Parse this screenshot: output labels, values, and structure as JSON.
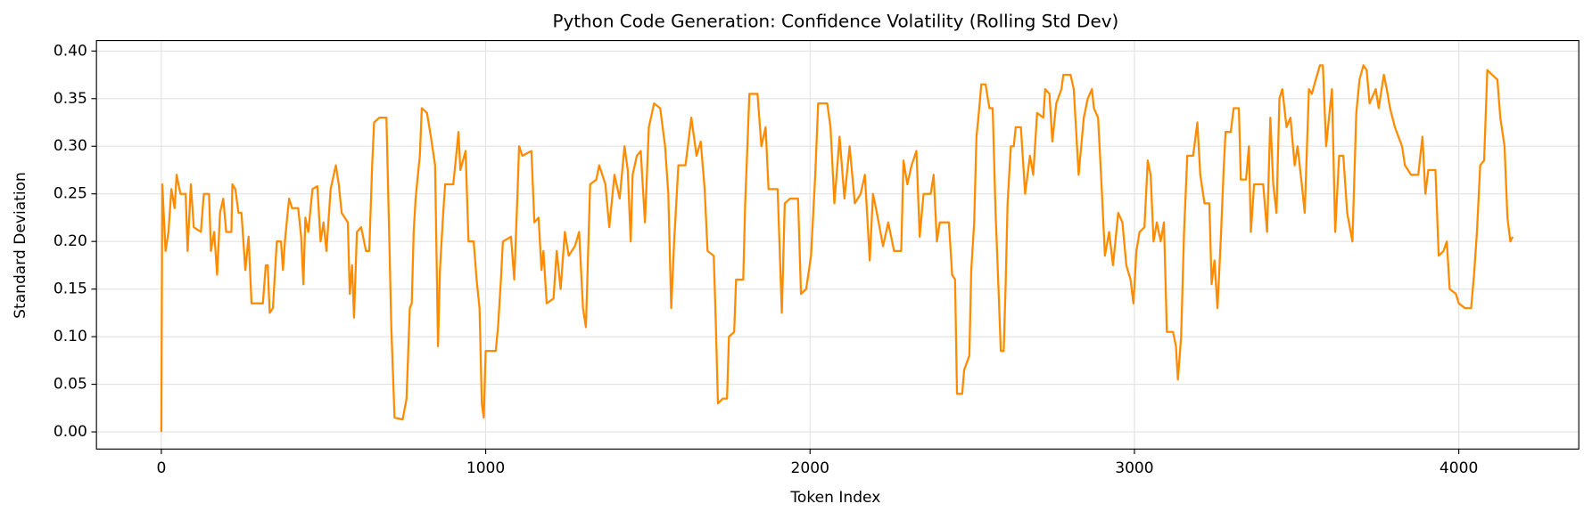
{
  "chart_data": {
    "type": "line",
    "title": "Python Code Generation: Confidence Volatility (Rolling Std Dev)",
    "x_label": "Token Index",
    "y_label": "Standard Deviation",
    "xlim": [
      -200,
      4370
    ],
    "ylim": [
      -0.018,
      0.411
    ],
    "xticks": [
      0,
      1000,
      2000,
      3000,
      4000
    ],
    "yticks": [
      {
        "value": 0,
        "label": "0.00"
      },
      {
        "value": 0.05,
        "label": "0.05"
      },
      {
        "value": 0.1,
        "label": "0.10"
      },
      {
        "value": 0.15,
        "label": "0.15"
      },
      {
        "value": 0.2,
        "label": "0.20"
      },
      {
        "value": 0.25,
        "label": "0.25"
      },
      {
        "value": 0.3,
        "label": "0.30"
      },
      {
        "value": 0.35,
        "label": "0.35"
      },
      {
        "value": 0.4,
        "label": "0.40"
      }
    ],
    "grid": true,
    "x": [
      0,
      3,
      13,
      22,
      31,
      41,
      47,
      59,
      75,
      81,
      91,
      100,
      122,
      131,
      147,
      153,
      163,
      172,
      181,
      191,
      200,
      216,
      219,
      228,
      238,
      247,
      259,
      269,
      278,
      313,
      322,
      328,
      334,
      344,
      350,
      356,
      369,
      375,
      381,
      388,
      394,
      403,
      422,
      431,
      438,
      444,
      453,
      466,
      481,
      491,
      500,
      509,
      522,
      538,
      547,
      556,
      575,
      581,
      588,
      594,
      603,
      616,
      631,
      641,
      650,
      656,
      672,
      694,
      703,
      709,
      719,
      744,
      756,
      766,
      772,
      778,
      784,
      791,
      797,
      803,
      819,
      831,
      844,
      853,
      859,
      869,
      875,
      900,
      909,
      916,
      922,
      938,
      947,
      963,
      972,
      981,
      988,
      994,
      1000,
      1031,
      1038,
      1047,
      1053,
      1078,
      1088,
      1097,
      1103,
      1113,
      1141,
      1150,
      1163,
      1172,
      1178,
      1188,
      1209,
      1219,
      1231,
      1244,
      1256,
      1275,
      1288,
      1300,
      1309,
      1322,
      1341,
      1350,
      1369,
      1381,
      1397,
      1413,
      1428,
      1438,
      1447,
      1453,
      1466,
      1478,
      1491,
      1503,
      1519,
      1538,
      1553,
      1563,
      1572,
      1581,
      1594,
      1616,
      1634,
      1650,
      1663,
      1675,
      1684,
      1703,
      1709,
      1716,
      1731,
      1744,
      1750,
      1766,
      1772,
      1794,
      1800,
      1813,
      1838,
      1850,
      1863,
      1872,
      1900,
      1913,
      1922,
      1938,
      1963,
      1972,
      1988,
      2003,
      2016,
      2025,
      2053,
      2063,
      2075,
      2091,
      2106,
      2122,
      2138,
      2156,
      2169,
      2184,
      2194,
      2206,
      2225,
      2241,
      2259,
      2281,
      2288,
      2300,
      2313,
      2328,
      2338,
      2350,
      2372,
      2381,
      2391,
      2400,
      2428,
      2438,
      2447,
      2453,
      2469,
      2475,
      2491,
      2497,
      2506,
      2513,
      2519,
      2528,
      2541,
      2553,
      2563,
      2572,
      2581,
      2588,
      2597,
      2603,
      2609,
      2619,
      2628,
      2634,
      2650,
      2663,
      2678,
      2688,
      2700,
      2719,
      2725,
      2738,
      2747,
      2759,
      2775,
      2781,
      2803,
      2813,
      2828,
      2844,
      2856,
      2869,
      2875,
      2888,
      2900,
      2909,
      2922,
      2934,
      2950,
      2963,
      2975,
      2988,
      2997,
      3006,
      3016,
      3031,
      3041,
      3050,
      3059,
      3069,
      3081,
      3091,
      3100,
      3119,
      3128,
      3134,
      3144,
      3153,
      3163,
      3181,
      3194,
      3203,
      3216,
      3231,
      3238,
      3247,
      3256,
      3266,
      3275,
      3281,
      3297,
      3306,
      3322,
      3328,
      3344,
      3353,
      3359,
      3369,
      3397,
      3409,
      3419,
      3428,
      3438,
      3447,
      3456,
      3469,
      3481,
      3494,
      3503,
      3516,
      3525,
      3538,
      3547,
      3559,
      3572,
      3581,
      3591,
      3600,
      3609,
      3619,
      3631,
      3644,
      3656,
      3672,
      3684,
      3694,
      3706,
      3716,
      3725,
      3744,
      3753,
      3769,
      3778,
      3788,
      3803,
      3825,
      3834,
      3853,
      3875,
      3888,
      3897,
      3906,
      3928,
      3938,
      3953,
      3963,
      3972,
      3991,
      4000,
      4019,
      4038,
      4047,
      4056,
      4066,
      4078,
      4088,
      4103,
      4119,
      4128,
      4141,
      4150,
      4159,
      4166
    ],
    "series": [
      {
        "color": "#ff8c00",
        "values": [
          0,
          0.26,
          0.19,
          0.21,
          0.255,
          0.235,
          0.27,
          0.25,
          0.25,
          0.19,
          0.26,
          0.215,
          0.21,
          0.25,
          0.25,
          0.19,
          0.21,
          0.165,
          0.23,
          0.245,
          0.21,
          0.21,
          0.26,
          0.255,
          0.23,
          0.23,
          0.17,
          0.205,
          0.135,
          0.135,
          0.175,
          0.175,
          0.125,
          0.13,
          0.165,
          0.2,
          0.2,
          0.17,
          0.2,
          0.225,
          0.245,
          0.235,
          0.235,
          0.205,
          0.155,
          0.225,
          0.21,
          0.255,
          0.258,
          0.2,
          0.22,
          0.19,
          0.255,
          0.28,
          0.26,
          0.23,
          0.22,
          0.145,
          0.175,
          0.12,
          0.21,
          0.215,
          0.19,
          0.19,
          0.28,
          0.325,
          0.33,
          0.33,
          0.2,
          0.11,
          0.015,
          0.013,
          0.035,
          0.13,
          0.135,
          0.21,
          0.245,
          0.27,
          0.29,
          0.34,
          0.335,
          0.31,
          0.28,
          0.09,
          0.17,
          0.23,
          0.26,
          0.26,
          0.29,
          0.315,
          0.275,
          0.295,
          0.2,
          0.2,
          0.16,
          0.13,
          0.03,
          0.015,
          0.085,
          0.085,
          0.11,
          0.16,
          0.2,
          0.205,
          0.16,
          0.24,
          0.3,
          0.29,
          0.295,
          0.22,
          0.225,
          0.17,
          0.19,
          0.135,
          0.14,
          0.19,
          0.15,
          0.21,
          0.185,
          0.195,
          0.21,
          0.13,
          0.11,
          0.26,
          0.265,
          0.28,
          0.26,
          0.215,
          0.27,
          0.245,
          0.3,
          0.275,
          0.2,
          0.27,
          0.29,
          0.295,
          0.22,
          0.32,
          0.345,
          0.34,
          0.3,
          0.25,
          0.13,
          0.2,
          0.28,
          0.28,
          0.33,
          0.29,
          0.305,
          0.255,
          0.19,
          0.185,
          0.12,
          0.03,
          0.035,
          0.035,
          0.1,
          0.105,
          0.16,
          0.16,
          0.24,
          0.355,
          0.355,
          0.3,
          0.32,
          0.255,
          0.255,
          0.125,
          0.24,
          0.245,
          0.245,
          0.145,
          0.15,
          0.185,
          0.27,
          0.345,
          0.345,
          0.32,
          0.24,
          0.31,
          0.245,
          0.3,
          0.24,
          0.25,
          0.27,
          0.18,
          0.25,
          0.23,
          0.195,
          0.22,
          0.19,
          0.19,
          0.285,
          0.26,
          0.28,
          0.295,
          0.205,
          0.25,
          0.25,
          0.27,
          0.2,
          0.22,
          0.22,
          0.165,
          0.16,
          0.04,
          0.04,
          0.065,
          0.08,
          0.17,
          0.22,
          0.31,
          0.33,
          0.365,
          0.365,
          0.34,
          0.34,
          0.23,
          0.15,
          0.085,
          0.085,
          0.155,
          0.24,
          0.3,
          0.3,
          0.32,
          0.32,
          0.25,
          0.29,
          0.27,
          0.335,
          0.33,
          0.36,
          0.355,
          0.305,
          0.345,
          0.36,
          0.375,
          0.375,
          0.36,
          0.27,
          0.33,
          0.35,
          0.36,
          0.34,
          0.33,
          0.25,
          0.185,
          0.21,
          0.175,
          0.23,
          0.22,
          0.175,
          0.16,
          0.135,
          0.19,
          0.21,
          0.215,
          0.285,
          0.27,
          0.2,
          0.22,
          0.2,
          0.22,
          0.105,
          0.105,
          0.09,
          0.055,
          0.1,
          0.21,
          0.29,
          0.29,
          0.325,
          0.27,
          0.24,
          0.24,
          0.155,
          0.18,
          0.13,
          0.2,
          0.275,
          0.315,
          0.315,
          0.34,
          0.34,
          0.265,
          0.265,
          0.3,
          0.21,
          0.26,
          0.26,
          0.21,
          0.33,
          0.26,
          0.23,
          0.35,
          0.36,
          0.32,
          0.33,
          0.28,
          0.3,
          0.26,
          0.23,
          0.36,
          0.355,
          0.37,
          0.385,
          0.385,
          0.3,
          0.33,
          0.36,
          0.21,
          0.29,
          0.29,
          0.23,
          0.2,
          0.335,
          0.37,
          0.385,
          0.38,
          0.345,
          0.36,
          0.34,
          0.375,
          0.36,
          0.34,
          0.32,
          0.3,
          0.28,
          0.27,
          0.27,
          0.31,
          0.25,
          0.275,
          0.275,
          0.185,
          0.19,
          0.2,
          0.15,
          0.145,
          0.135,
          0.13,
          0.13,
          0.165,
          0.21,
          0.28,
          0.285,
          0.38,
          0.375,
          0.37,
          0.33,
          0.3,
          0.225,
          0.2,
          0.205
        ]
      }
    ]
  }
}
